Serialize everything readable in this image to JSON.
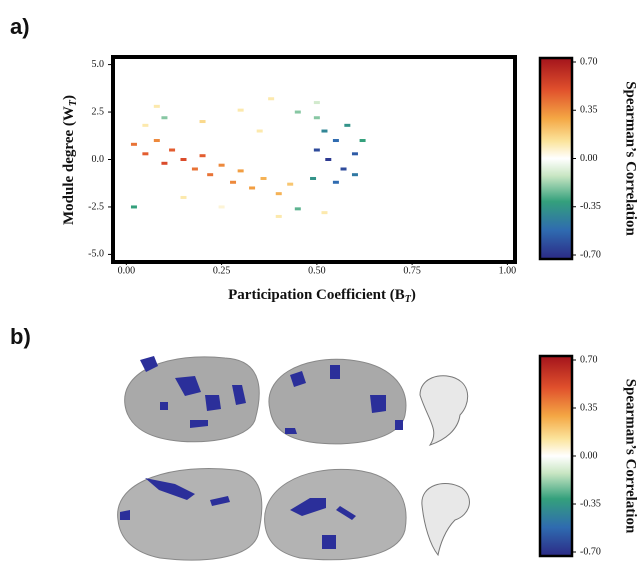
{
  "panels": [
    "a)",
    "b)"
  ],
  "chart_data": [
    {
      "type": "scatter",
      "x_label": [
        "Participation Coefficient (B",
        "T",
        ")"
      ],
      "y_label": [
        "Module degree (W",
        "T",
        ")"
      ],
      "xlim": [
        -0.035,
        1.02
      ],
      "ylim": [
        -5.4,
        5.4
      ],
      "xticks": [
        {
          "value": 0,
          "label": "0.00"
        },
        0.25,
        {
          "value": 0.5,
          "label": "0.50"
        },
        0.75,
        {
          "value": 1,
          "label": "1.00"
        }
      ],
      "yticks": [
        {
          "value": 5,
          "label": "5.0"
        },
        2.5,
        {
          "value": 0,
          "label": "0.0"
        },
        -2.5,
        {
          "value": -5,
          "label": "-5.0"
        }
      ],
      "x": [
        0.02,
        0.05,
        0.08,
        0.1,
        0.12,
        0.15,
        0.18,
        0.2,
        0.22,
        0.25,
        0.28,
        0.3,
        0.33,
        0.36,
        0.4,
        0.43,
        0.05,
        0.1,
        0.2,
        0.3,
        0.35,
        0.15,
        0.25,
        0.4,
        0.02,
        0.08,
        0.45,
        0.5,
        0.38,
        0.45,
        0.52,
        0.5,
        0.53,
        0.55,
        0.57,
        0.6,
        0.52,
        0.58,
        0.55,
        0.6,
        0.49,
        0.62,
        0.5
      ],
      "y": [
        0.8,
        0.3,
        1.0,
        -0.2,
        0.5,
        0.0,
        -0.5,
        0.2,
        -0.8,
        -0.3,
        -1.2,
        -0.6,
        -1.5,
        -1.0,
        -1.8,
        -1.3,
        1.8,
        2.2,
        2.0,
        2.6,
        1.5,
        -2.0,
        -2.5,
        -3.0,
        -2.5,
        2.8,
        2.5,
        3.0,
        3.2,
        -2.6,
        -2.8,
        0.5,
        0.0,
        1.0,
        -0.5,
        0.3,
        1.5,
        1.8,
        -1.2,
        -0.8,
        -1.0,
        1.0,
        2.2
      ],
      "values": [
        0.4,
        0.45,
        0.35,
        0.5,
        0.45,
        0.5,
        0.4,
        0.45,
        0.4,
        0.35,
        0.35,
        0.3,
        0.3,
        0.25,
        0.25,
        0.2,
        0.1,
        -0.2,
        0.15,
        0.1,
        0.1,
        0.1,
        0.05,
        0.1,
        -0.3,
        0.1,
        -0.2,
        -0.1,
        0.1,
        -0.25,
        0.1,
        -0.6,
        -0.65,
        -0.5,
        -0.6,
        -0.55,
        -0.4,
        -0.35,
        -0.5,
        -0.45,
        -0.35,
        -0.3,
        -0.2
      ],
      "colormap": [
        [
          -0.7,
          "#2c2a86"
        ],
        [
          -0.5,
          "#2f6bb0"
        ],
        [
          -0.3,
          "#34a07c"
        ],
        [
          -0.12,
          "#c9e6c3"
        ],
        [
          0,
          "#ffffff"
        ],
        [
          0.12,
          "#fbe49c"
        ],
        [
          0.28,
          "#f4a744"
        ],
        [
          0.48,
          "#e0502c"
        ],
        [
          0.7,
          "#a3141c"
        ]
      ],
      "colorbar": {
        "label": "Spearman’s Correlation",
        "lim": [
          -0.7,
          0.7
        ],
        "ticks": [
          {
            "value": 0.7,
            "label": "0.70"
          },
          0.35,
          {
            "value": 0,
            "label": "0.00"
          },
          -0.35,
          {
            "value": -0.7,
            "label": "-0.70"
          }
        ]
      }
    },
    {
      "type": "colorbar",
      "label": "Spearman’s Correlation",
      "lim": [
        -0.7,
        0.7
      ],
      "ticks": [
        {
          "value": 0.7,
          "label": "0.70"
        },
        0.35,
        {
          "value": 0,
          "label": "0.00"
        },
        -0.35,
        {
          "value": -0.7,
          "label": "-0.70"
        }
      ]
    }
  ]
}
